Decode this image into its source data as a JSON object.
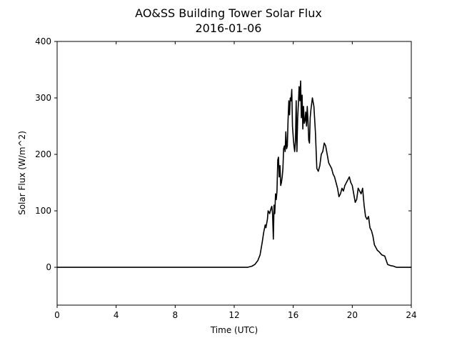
{
  "chart_data": {
    "type": "line",
    "title": "AO&SS Building Tower Solar Flux",
    "subtitle": "2016-01-06",
    "xlabel": "Time (UTC)",
    "ylabel": "Solar Flux (W/m^2)",
    "xlim": [
      0,
      24
    ],
    "ylim": [
      -67,
      400
    ],
    "xticks": [
      0,
      4,
      8,
      12,
      16,
      20,
      24
    ],
    "yticks": [
      0,
      100,
      200,
      300,
      400
    ],
    "grid": false,
    "legend": "none",
    "line_color": "#000000",
    "series": [
      {
        "x": [
          0,
          12.0,
          12.9,
          13.2,
          13.4,
          13.6,
          13.75,
          13.9,
          14.0,
          14.1,
          14.15,
          14.25,
          14.3,
          14.4,
          14.5,
          14.55,
          14.6,
          14.65,
          14.7,
          14.75,
          14.8,
          14.85,
          14.9,
          14.95,
          15.0,
          15.05,
          15.1,
          15.15,
          15.2,
          15.25,
          15.3,
          15.35,
          15.4,
          15.45,
          15.5,
          15.55,
          15.6,
          15.65,
          15.7,
          15.75,
          15.8,
          15.85,
          15.9,
          15.95,
          16.0,
          16.05,
          16.1,
          16.15,
          16.2,
          16.25,
          16.3,
          16.35,
          16.4,
          16.45,
          16.5,
          16.55,
          16.6,
          16.65,
          16.7,
          16.75,
          16.8,
          16.85,
          16.9,
          16.95,
          17.0,
          17.05,
          17.1,
          17.15,
          17.2,
          17.3,
          17.4,
          17.5,
          17.6,
          17.7,
          17.8,
          17.9,
          18.0,
          18.1,
          18.2,
          18.3,
          18.4,
          18.5,
          18.6,
          18.7,
          18.8,
          18.9,
          19.0,
          19.1,
          19.2,
          19.3,
          19.4,
          19.5,
          19.6,
          19.7,
          19.8,
          19.9,
          20.0,
          20.1,
          20.2,
          20.3,
          20.4,
          20.5,
          20.6,
          20.7,
          20.8,
          20.9,
          21.0,
          21.1,
          21.2,
          21.3,
          21.4,
          21.5,
          21.6,
          21.7,
          21.8,
          22.0,
          22.2,
          22.4,
          22.6,
          22.8,
          23.0,
          23.5,
          24
        ],
        "y": [
          0,
          0,
          0,
          2,
          5,
          12,
          22,
          45,
          62,
          75,
          70,
          85,
          100,
          95,
          105,
          108,
          95,
          50,
          110,
          95,
          130,
          120,
          135,
          190,
          195,
          160,
          180,
          145,
          150,
          160,
          175,
          210,
          215,
          205,
          240,
          210,
          215,
          260,
          295,
          270,
          300,
          295,
          315,
          250,
          230,
          215,
          205,
          225,
          295,
          205,
          265,
          290,
          320,
          295,
          330,
          265,
          305,
          245,
          285,
          255,
          260,
          275,
          250,
          285,
          260,
          225,
          220,
          265,
          280,
          300,
          285,
          240,
          175,
          170,
          180,
          200,
          205,
          220,
          215,
          200,
          185,
          180,
          175,
          165,
          160,
          150,
          140,
          125,
          130,
          140,
          135,
          145,
          150,
          155,
          160,
          150,
          145,
          130,
          115,
          120,
          140,
          135,
          130,
          140,
          110,
          90,
          85,
          90,
          70,
          65,
          55,
          40,
          35,
          30,
          28,
          22,
          20,
          5,
          3,
          2,
          0,
          0,
          0
        ]
      }
    ]
  }
}
